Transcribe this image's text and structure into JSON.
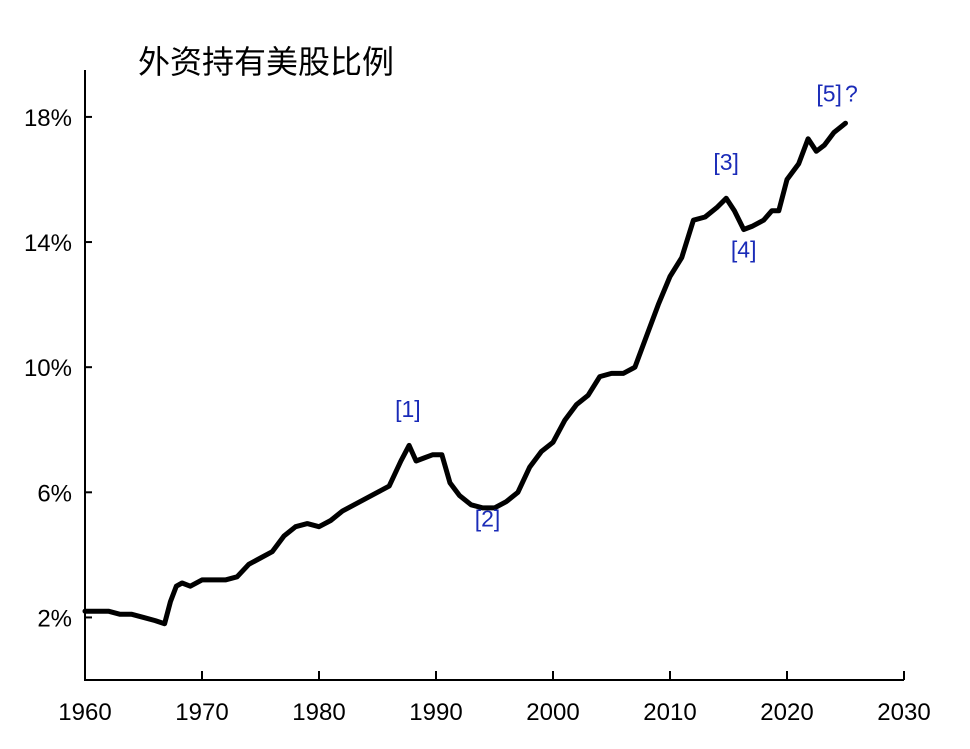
{
  "chart_data": {
    "type": "line",
    "title": "外资持有美股比例",
    "xlabel": "",
    "ylabel": "",
    "xlim": [
      1960,
      2030
    ],
    "ylim": [
      0,
      19.5
    ],
    "x_ticks": [
      1960,
      1970,
      1980,
      1990,
      2000,
      2010,
      2020,
      2030
    ],
    "x_tick_labels": [
      "1960",
      "1970",
      "1980",
      "1990",
      "2000",
      "2010",
      "2020",
      "2030"
    ],
    "y_ticks": [
      2,
      6,
      10,
      14,
      18
    ],
    "y_tick_labels": [
      "2%",
      "6%",
      "10%",
      "14%",
      "18%"
    ],
    "grid": false,
    "legend": "none",
    "series": [
      {
        "color": "#000000",
        "x": [
          1960,
          1961,
          1962,
          1963,
          1964,
          1965,
          1966,
          1966.8,
          1967.3,
          1967.8,
          1968.3,
          1969,
          1970,
          1971,
          1972,
          1973,
          1974,
          1975,
          1976,
          1977,
          1978,
          1979,
          1980,
          1981,
          1982,
          1983,
          1984,
          1985,
          1986,
          1987,
          1987.7,
          1988.3,
          1989,
          1989.7,
          1990.5,
          1991.2,
          1992,
          1993,
          1994,
          1995,
          1996,
          1997,
          1998,
          1999,
          2000,
          2001,
          2002,
          2003,
          2004,
          2005,
          2006,
          2007,
          2008,
          2009,
          2010,
          2011,
          2012,
          2013,
          2014,
          2014.8,
          2015.5,
          2016.3,
          2017,
          2018,
          2018.7,
          2019.3,
          2020,
          2021,
          2021.8,
          2022.5,
          2023.2,
          2024,
          2025
        ],
        "y": [
          2.2,
          2.2,
          2.2,
          2.1,
          2.1,
          2.0,
          1.9,
          1.8,
          2.5,
          3.0,
          3.1,
          3.0,
          3.2,
          3.2,
          3.2,
          3.3,
          3.7,
          3.9,
          4.1,
          4.6,
          4.9,
          5.0,
          4.9,
          5.1,
          5.4,
          5.6,
          5.8,
          6.0,
          6.2,
          7.0,
          7.5,
          7.0,
          7.1,
          7.2,
          7.2,
          6.3,
          5.9,
          5.6,
          5.5,
          5.5,
          5.7,
          6.0,
          6.8,
          7.3,
          7.6,
          8.3,
          8.8,
          9.1,
          9.7,
          9.8,
          9.8,
          10.0,
          11.0,
          12.0,
          12.9,
          13.5,
          14.7,
          14.8,
          15.1,
          15.4,
          15.0,
          14.4,
          14.5,
          14.7,
          15.0,
          15.0,
          16.0,
          16.5,
          17.3,
          16.9,
          17.1,
          17.5,
          17.8
        ]
      }
    ],
    "annotations": [
      {
        "label": "[1]",
        "x": 1987.6,
        "y": 8.4,
        "color": "#1a2bb8"
      },
      {
        "label": "[2]",
        "x": 1994.4,
        "y": 4.9,
        "color": "#1a2bb8"
      },
      {
        "label": "[3]",
        "x": 2014.8,
        "y": 16.3,
        "color": "#1a2bb8"
      },
      {
        "label": "[4]",
        "x": 2016.3,
        "y": 13.5,
        "color": "#1a2bb8"
      },
      {
        "label": "[5]",
        "x": 2023.6,
        "y": 18.5,
        "color": "#1a2bb8"
      },
      {
        "label": "?",
        "x": 2025.5,
        "y": 18.5,
        "color": "#1a2bb8"
      }
    ]
  }
}
